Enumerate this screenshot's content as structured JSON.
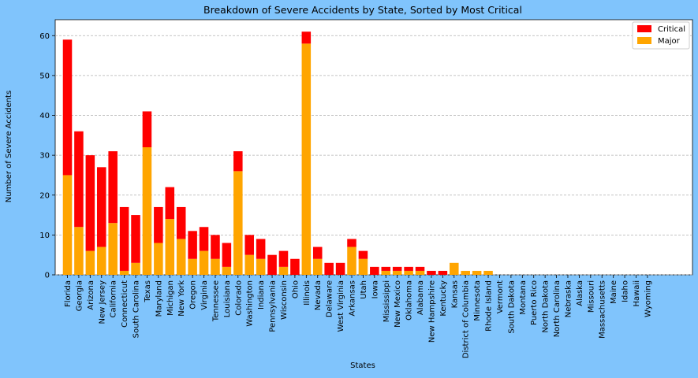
{
  "chart_data": {
    "type": "bar",
    "stacked": true,
    "title": "Breakdown of Severe Accidents by State, Sorted by Most Critical",
    "xlabel": "States",
    "ylabel": "Number of Severe Accidents",
    "ylim": [
      0,
      64
    ],
    "yticks": [
      0,
      10,
      20,
      30,
      40,
      50,
      60
    ],
    "grid": "y-dashed",
    "legend_position": "top-right",
    "categories": [
      "Florida",
      "Georgia",
      "Arizona",
      "New Jersey",
      "California",
      "Connecticut",
      "South Carolina",
      "Texas",
      "Maryland",
      "Michigan",
      "New York",
      "Oregon",
      "Virginia",
      "Tennessee",
      "Louisiana",
      "Colorado",
      "Washington",
      "Indiana",
      "Pennsylvania",
      "Wisconsin",
      "Ohio",
      "Illinois",
      "Nevada",
      "Delaware",
      "West Virginia",
      "Arkansas",
      "Utah",
      "Iowa",
      "Mississippi",
      "New Mexico",
      "Oklahoma",
      "Alabama",
      "New Hampshire",
      "Kentucky",
      "Kansas",
      "District of Columbia",
      "Minnesota",
      "Rhode Island",
      "Vermont",
      "South Dakota",
      "Montana",
      "Puerto Rico",
      "North Dakota",
      "North Carolina",
      "Nebraska",
      "Alaska",
      "Missouri",
      "Massachusetts",
      "Maine",
      "Idaho",
      "Hawaii",
      "Wyoming"
    ],
    "series": [
      {
        "name": "Critical",
        "color": "#ff0000",
        "values": [
          34,
          24,
          24,
          20,
          18,
          16,
          12,
          9,
          9,
          8,
          8,
          7,
          6,
          6,
          6,
          5,
          5,
          5,
          5,
          4,
          4,
          3,
          3,
          3,
          3,
          2,
          2,
          2,
          1,
          1,
          1,
          1,
          1,
          1,
          0,
          0,
          0,
          0,
          0,
          0,
          0,
          0,
          0,
          0,
          0,
          0,
          0,
          0,
          0,
          0,
          0,
          0
        ]
      },
      {
        "name": "Major",
        "color": "#ffa500",
        "values": [
          25,
          12,
          6,
          7,
          13,
          1,
          3,
          32,
          8,
          14,
          9,
          4,
          6,
          4,
          2,
          26,
          5,
          4,
          0,
          2,
          0,
          58,
          4,
          0,
          0,
          7,
          4,
          0,
          1,
          1,
          1,
          1,
          0,
          0,
          3,
          1,
          1,
          1,
          0,
          0,
          0,
          0,
          0,
          0,
          0,
          0,
          0,
          0,
          0,
          0,
          0,
          0
        ]
      }
    ]
  }
}
